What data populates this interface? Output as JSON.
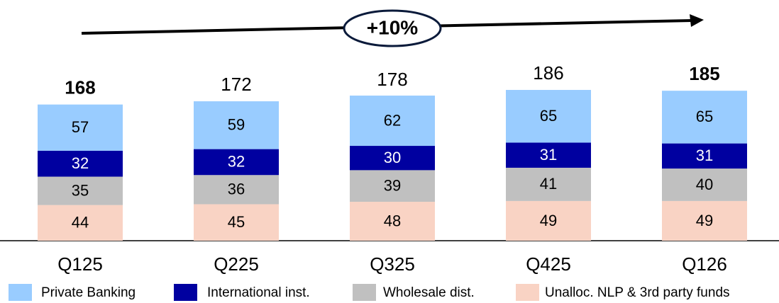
{
  "chart_data": {
    "type": "stacked-bar",
    "annotation": "+10%",
    "categories": [
      "Q125",
      "Q225",
      "Q325",
      "Q425",
      "Q126"
    ],
    "series": [
      {
        "name": "Private Banking",
        "color": "#99ccff",
        "values": [
          57,
          59,
          62,
          65,
          65
        ]
      },
      {
        "name": "International inst.",
        "color": "#0000a0",
        "values": [
          32,
          32,
          30,
          31,
          31
        ]
      },
      {
        "name": "Wholesale dist.",
        "color": "#c0c0c0",
        "values": [
          35,
          36,
          39,
          41,
          40
        ]
      },
      {
        "name": "Unalloc. NLP & 3rd party funds",
        "color": "#f9d3c4",
        "values": [
          44,
          45,
          48,
          49,
          49
        ]
      }
    ],
    "totals": [
      168,
      172,
      178,
      186,
      185
    ]
  }
}
